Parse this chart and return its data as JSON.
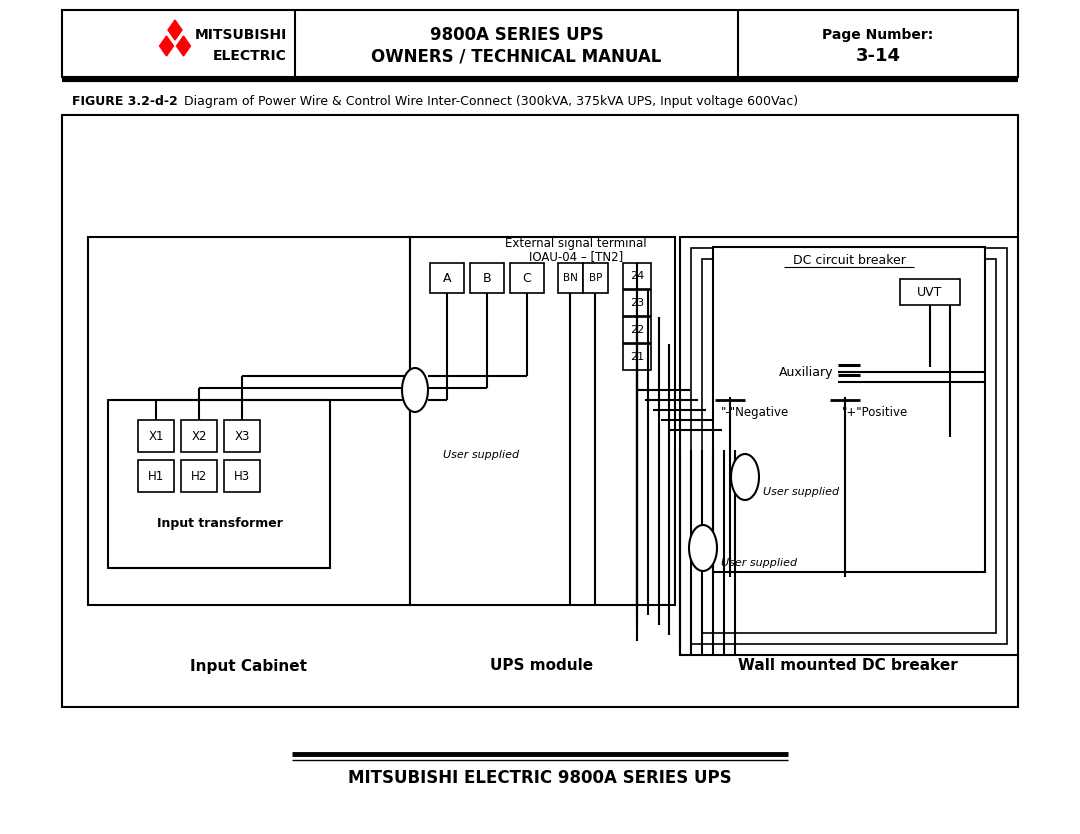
{
  "title_line1": "9800A SERIES UPS",
  "title_line2": "OWNERS / TECHNICAL MANUAL",
  "page_label": "Page Number:",
  "page_number": "3-14",
  "company_line1": "MITSUBISHI",
  "company_line2": "ELECTRIC",
  "figure_caption_bold": "FIGURE 3.2-d-2",
  "figure_caption_rest": "   Diagram of Power Wire & Control Wire Inter-Connect (300kVA, 375kVA UPS, Input voltage 600Vac)",
  "footer_text": "MITSUBISHI ELECTRIC 9800A SERIES UPS",
  "label_input_cabinet": "Input Cabinet",
  "label_ups_module": "UPS module",
  "label_wall_mounted": "Wall mounted DC breaker",
  "label_input_transformer": "Input transformer",
  "label_external_signal": "External signal terminal",
  "label_ioau": "IOAU-04 – [TN2]",
  "label_dc_circuit_breaker": "DC circuit breaker",
  "label_uvt": "UVT",
  "label_auxiliary": "Auxiliary",
  "label_negative": "\"-\"Negative",
  "label_positive": "\"+\"Positive",
  "label_user_supplied_1": "User supplied",
  "label_user_supplied_2": "User supplied",
  "label_user_supplied_3": "User supplied",
  "bg_color": "#ffffff"
}
